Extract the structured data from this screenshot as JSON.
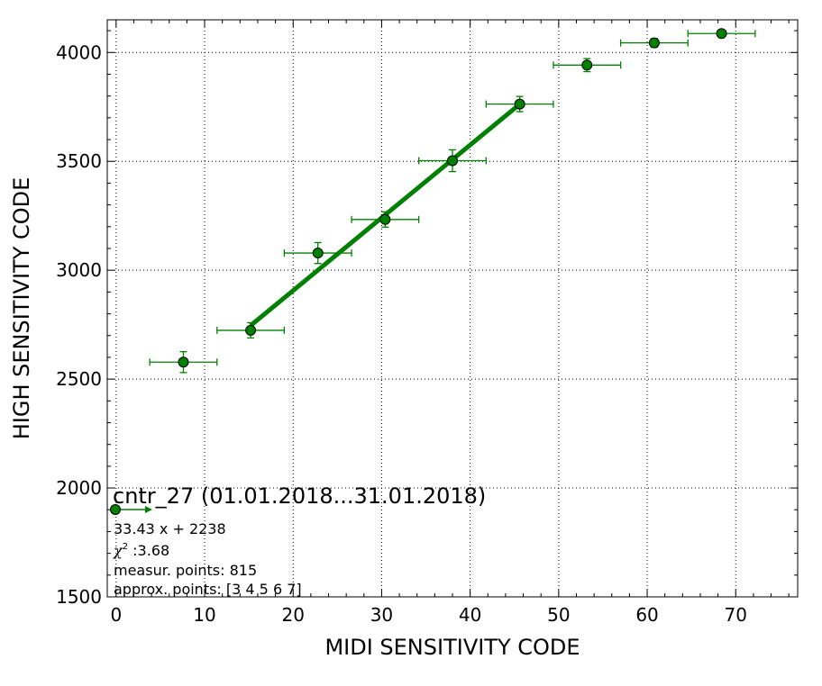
{
  "chart_data": {
    "type": "scatter",
    "xlabel": "MIDI SENSITIVITY CODE",
    "ylabel": "HIGH SENSITIVITY CODE",
    "xlim": [
      -1,
      77
    ],
    "ylim": [
      1500,
      4150
    ],
    "xticks": [
      0,
      10,
      20,
      30,
      40,
      50,
      60,
      70
    ],
    "yticks": [
      1500,
      2000,
      2500,
      3000,
      3500,
      4000
    ],
    "grid": true,
    "series_color": "#008000",
    "marker_color": "#008000",
    "points": [
      {
        "x": 7.6,
        "y": 2578,
        "xerr": 3.8,
        "yerr": 48
      },
      {
        "x": 15.2,
        "y": 2724,
        "xerr": 3.8,
        "yerr": 35
      },
      {
        "x": 22.8,
        "y": 3079,
        "xerr": 3.8,
        "yerr": 48
      },
      {
        "x": 30.4,
        "y": 3233,
        "xerr": 3.8,
        "yerr": 35
      },
      {
        "x": 38.0,
        "y": 3503,
        "xerr": 3.8,
        "yerr": 50
      },
      {
        "x": 45.6,
        "y": 3763,
        "xerr": 3.8,
        "yerr": 35
      },
      {
        "x": 53.2,
        "y": 3942,
        "xerr": 3.8,
        "yerr": 30
      },
      {
        "x": 60.8,
        "y": 4044,
        "xerr": 3.8,
        "yerr": 20
      },
      {
        "x": 68.4,
        "y": 4087,
        "xerr": 3.8,
        "yerr": 15
      }
    ],
    "fit": {
      "slope": 33.43,
      "intercept": 2238,
      "x_range": [
        15.2,
        45.6
      ]
    },
    "annotation": {
      "title": "cntr_27 (01.01.2018...31.01.2018)",
      "equation": "33.43 x + 2238",
      "chi_symbol": "χ",
      "chi_exponent": "2",
      "chi_value": " :3.68",
      "measur_points": "measur. points: 815",
      "approx_points": "approx. points: [3 4 5 6 7]"
    }
  }
}
